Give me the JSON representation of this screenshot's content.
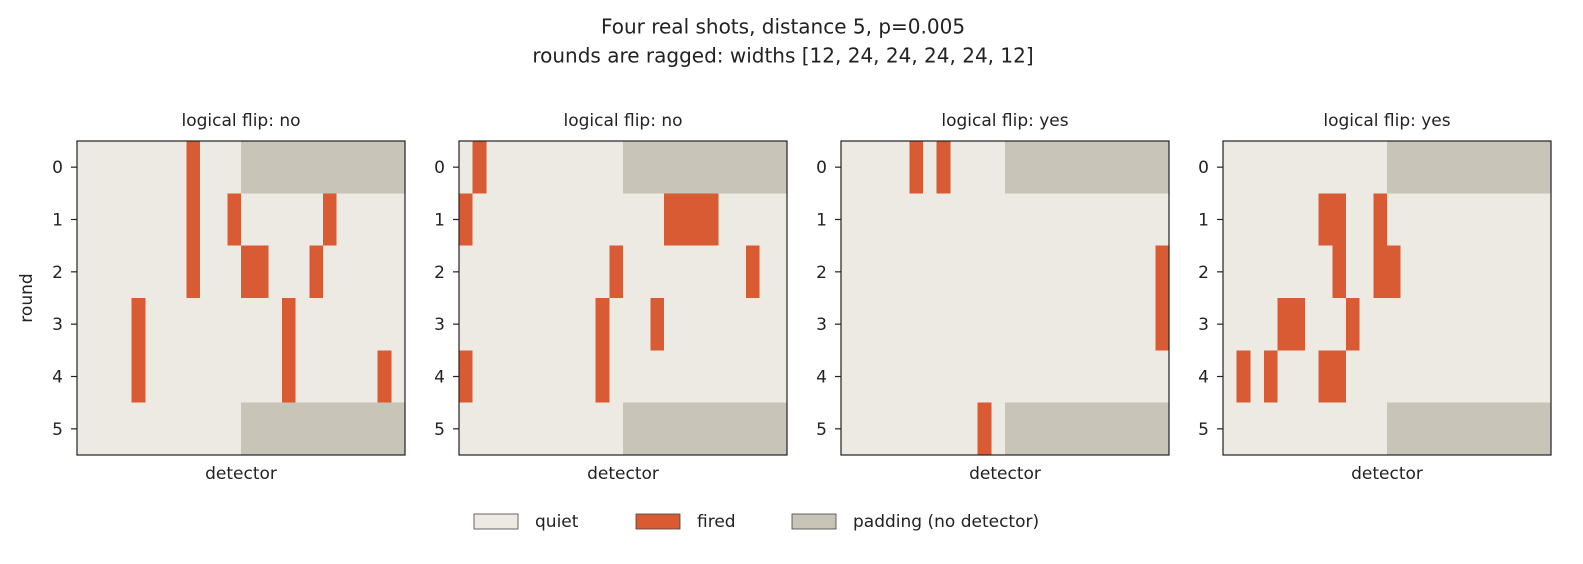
{
  "title": "Four real shots, distance 5, p=0.005",
  "subtitle": "rounds are ragged: widths [12, 24, 24, 24, 24, 12]",
  "legend": [
    {
      "name": "quiet",
      "color": "#ede9e3"
    },
    {
      "name": "fired",
      "color": "#d95b33"
    },
    {
      "name": "padding (no detector)",
      "color": "#c8c4b8"
    }
  ],
  "chart_data": [
    {
      "type": "heatmap",
      "title": "logical flip: no",
      "xlabel": "detector",
      "ylabel": "round",
      "ylim": [
        5.5,
        -0.5
      ],
      "yticks": [
        0,
        1,
        2,
        3,
        4,
        5
      ],
      "z": [
        [
          0,
          0,
          0,
          0,
          0,
          0,
          0,
          0,
          1,
          0,
          0,
          0,
          null,
          null,
          null,
          null,
          null,
          null,
          null,
          null,
          null,
          null,
          null,
          null
        ],
        [
          0,
          0,
          0,
          0,
          0,
          0,
          0,
          0,
          1,
          0,
          0,
          1,
          0,
          0,
          0,
          0,
          0,
          0,
          1,
          0,
          0,
          0,
          0,
          0
        ],
        [
          0,
          0,
          0,
          0,
          0,
          0,
          0,
          0,
          1,
          0,
          0,
          0,
          1,
          1,
          0,
          0,
          0,
          1,
          0,
          0,
          0,
          0,
          0,
          0
        ],
        [
          0,
          0,
          0,
          0,
          1,
          0,
          0,
          0,
          0,
          0,
          0,
          0,
          0,
          0,
          0,
          1,
          0,
          0,
          0,
          0,
          0,
          0,
          0,
          0
        ],
        [
          0,
          0,
          0,
          0,
          1,
          0,
          0,
          0,
          0,
          0,
          0,
          0,
          0,
          0,
          0,
          1,
          0,
          0,
          0,
          0,
          0,
          0,
          1,
          0
        ],
        [
          0,
          0,
          0,
          0,
          0,
          0,
          0,
          0,
          0,
          0,
          0,
          0,
          null,
          null,
          null,
          null,
          null,
          null,
          null,
          null,
          null,
          null,
          null,
          null
        ]
      ]
    },
    {
      "type": "heatmap",
      "title": "logical flip: no",
      "xlabel": "detector",
      "ylim": [
        5.5,
        -0.5
      ],
      "yticks": [
        0,
        1,
        2,
        3,
        4,
        5
      ],
      "z": [
        [
          0,
          1,
          0,
          0,
          0,
          0,
          0,
          0,
          0,
          0,
          0,
          0,
          null,
          null,
          null,
          null,
          null,
          null,
          null,
          null,
          null,
          null,
          null,
          null
        ],
        [
          1,
          0,
          0,
          0,
          0,
          0,
          0,
          0,
          0,
          0,
          0,
          0,
          0,
          0,
          0,
          1,
          1,
          1,
          1,
          0,
          0,
          0,
          0,
          0
        ],
        [
          0,
          0,
          0,
          0,
          0,
          0,
          0,
          0,
          0,
          0,
          0,
          1,
          0,
          0,
          0,
          0,
          0,
          0,
          0,
          0,
          0,
          1,
          0,
          0
        ],
        [
          0,
          0,
          0,
          0,
          0,
          0,
          0,
          0,
          0,
          0,
          1,
          0,
          0,
          0,
          1,
          0,
          0,
          0,
          0,
          0,
          0,
          0,
          0,
          0
        ],
        [
          1,
          0,
          0,
          0,
          0,
          0,
          0,
          0,
          0,
          0,
          1,
          0,
          0,
          0,
          0,
          0,
          0,
          0,
          0,
          0,
          0,
          0,
          0,
          0
        ],
        [
          0,
          0,
          0,
          0,
          0,
          0,
          0,
          0,
          0,
          0,
          0,
          0,
          null,
          null,
          null,
          null,
          null,
          null,
          null,
          null,
          null,
          null,
          null,
          null
        ]
      ]
    },
    {
      "type": "heatmap",
      "title": "logical flip: yes",
      "xlabel": "detector",
      "ylim": [
        5.5,
        -0.5
      ],
      "yticks": [
        0,
        1,
        2,
        3,
        4,
        5
      ],
      "z": [
        [
          0,
          0,
          0,
          0,
          0,
          1,
          0,
          1,
          0,
          0,
          0,
          0,
          null,
          null,
          null,
          null,
          null,
          null,
          null,
          null,
          null,
          null,
          null,
          null
        ],
        [
          0,
          0,
          0,
          0,
          0,
          0,
          0,
          0,
          0,
          0,
          0,
          0,
          0,
          0,
          0,
          0,
          0,
          0,
          0,
          0,
          0,
          0,
          0,
          0
        ],
        [
          0,
          0,
          0,
          0,
          0,
          0,
          0,
          0,
          0,
          0,
          0,
          0,
          0,
          0,
          0,
          0,
          0,
          0,
          0,
          0,
          0,
          0,
          0,
          1
        ],
        [
          0,
          0,
          0,
          0,
          0,
          0,
          0,
          0,
          0,
          0,
          0,
          0,
          0,
          0,
          0,
          0,
          0,
          0,
          0,
          0,
          0,
          0,
          0,
          1
        ],
        [
          0,
          0,
          0,
          0,
          0,
          0,
          0,
          0,
          0,
          0,
          0,
          0,
          0,
          0,
          0,
          0,
          0,
          0,
          0,
          0,
          0,
          0,
          0,
          0
        ],
        [
          0,
          0,
          0,
          0,
          0,
          0,
          0,
          0,
          0,
          0,
          1,
          0,
          null,
          null,
          null,
          null,
          null,
          null,
          null,
          null,
          null,
          null,
          null,
          null
        ]
      ]
    },
    {
      "type": "heatmap",
      "title": "logical flip: yes",
      "xlabel": "detector",
      "ylim": [
        5.5,
        -0.5
      ],
      "yticks": [
        0,
        1,
        2,
        3,
        4,
        5
      ],
      "z": [
        [
          0,
          0,
          0,
          0,
          0,
          0,
          0,
          0,
          0,
          0,
          0,
          0,
          null,
          null,
          null,
          null,
          null,
          null,
          null,
          null,
          null,
          null,
          null,
          null
        ],
        [
          0,
          0,
          0,
          0,
          0,
          0,
          0,
          1,
          1,
          0,
          0,
          1,
          0,
          0,
          0,
          0,
          0,
          0,
          0,
          0,
          0,
          0,
          0,
          0
        ],
        [
          0,
          0,
          0,
          0,
          0,
          0,
          0,
          0,
          1,
          0,
          0,
          1,
          1,
          0,
          0,
          0,
          0,
          0,
          0,
          0,
          0,
          0,
          0,
          0
        ],
        [
          0,
          0,
          0,
          0,
          1,
          1,
          0,
          0,
          0,
          1,
          0,
          0,
          0,
          0,
          0,
          0,
          0,
          0,
          0,
          0,
          0,
          0,
          0,
          0
        ],
        [
          0,
          1,
          0,
          1,
          0,
          0,
          0,
          1,
          1,
          0,
          0,
          0,
          0,
          0,
          0,
          0,
          0,
          0,
          0,
          0,
          0,
          0,
          0,
          0
        ],
        [
          0,
          0,
          0,
          0,
          0,
          0,
          0,
          0,
          0,
          0,
          0,
          0,
          null,
          null,
          null,
          null,
          null,
          null,
          null,
          null,
          null,
          null,
          null,
          null
        ]
      ]
    }
  ]
}
